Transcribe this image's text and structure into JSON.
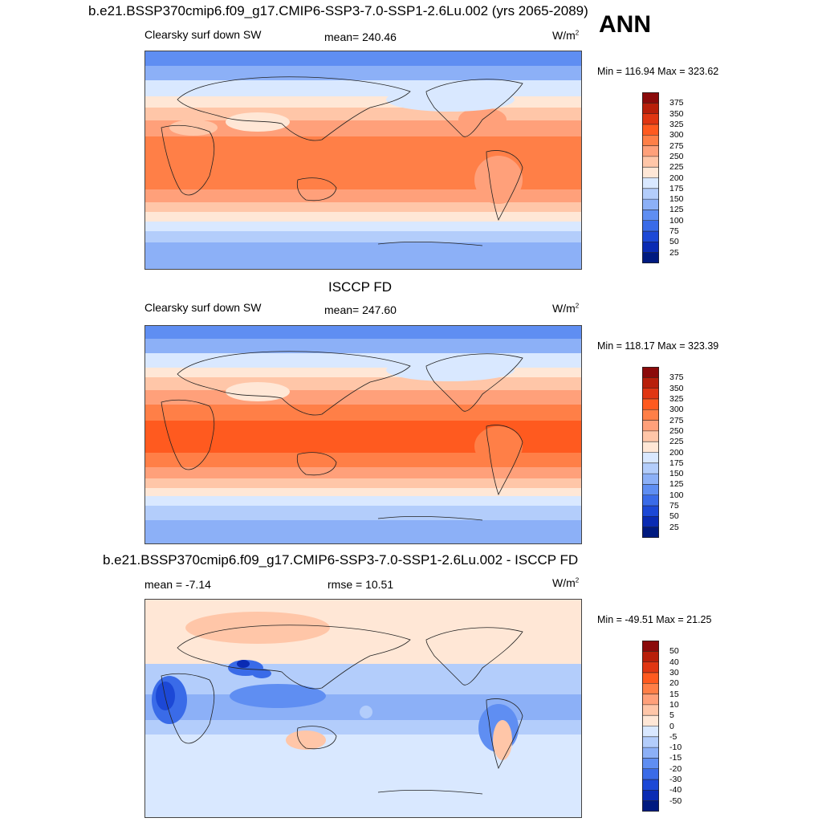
{
  "header": {
    "title": "b.e21.BSSP370cmip6.f09_g17.CMIP6-SSP3-7.0-SSP1-2.6Lu.002 (yrs 2065-2089)",
    "season": "ANN"
  },
  "panels": [
    {
      "variable": "Clearsky surf down SW",
      "stat": "mean= 240.46",
      "units_base": "W/m",
      "units_exp": "2",
      "minmax": "Min = 116.94 Max = 323.62",
      "colorbar_labels": [
        "375",
        "350",
        "325",
        "300",
        "275",
        "250",
        "225",
        "200",
        "175",
        "150",
        "125",
        "100",
        "75",
        "50",
        "25"
      ],
      "colorbar_colors": [
        "#8b0a0a",
        "#b81f0a",
        "#e03612",
        "#ff5a1f",
        "#ff7f47",
        "#ffa07a",
        "#ffc6a8",
        "#ffe7d6",
        "#d9e8ff",
        "#b3cdfb",
        "#8cb0f7",
        "#5f8ef2",
        "#3a6be8",
        "#1c48d6",
        "#0a2bb3",
        "#001a80"
      ],
      "field": "model-sw"
    },
    {
      "title": "ISCCP FD",
      "variable": "Clearsky surf down SW",
      "stat": "mean= 247.60",
      "units_base": "W/m",
      "units_exp": "2",
      "minmax": "Min = 118.17 Max = 323.39",
      "colorbar_labels": [
        "375",
        "350",
        "325",
        "300",
        "275",
        "250",
        "225",
        "200",
        "175",
        "150",
        "125",
        "100",
        "75",
        "50",
        "25"
      ],
      "colorbar_colors": [
        "#8b0a0a",
        "#b81f0a",
        "#e03612",
        "#ff5a1f",
        "#ff7f47",
        "#ffa07a",
        "#ffc6a8",
        "#ffe7d6",
        "#d9e8ff",
        "#b3cdfb",
        "#8cb0f7",
        "#5f8ef2",
        "#3a6be8",
        "#1c48d6",
        "#0a2bb3",
        "#001a80"
      ],
      "field": "obs-sw"
    },
    {
      "title": "b.e21.BSSP370cmip6.f09_g17.CMIP6-SSP3-7.0-SSP1-2.6Lu.002 - ISCCP FD",
      "stat": "mean =  -7.14",
      "stat2": "rmse =  10.51",
      "units_base": "W/m",
      "units_exp": "2",
      "minmax": "Min = -49.51 Max =  21.25",
      "colorbar_labels": [
        "50",
        "40",
        "30",
        "20",
        "15",
        "10",
        "5",
        "0",
        "-5",
        "-10",
        "-15",
        "-20",
        "-30",
        "-40",
        "-50"
      ],
      "colorbar_colors": [
        "#8b0a0a",
        "#b81f0a",
        "#e03612",
        "#ff5a1f",
        "#ff7f47",
        "#ffa07a",
        "#ffc6a8",
        "#ffe7d6",
        "#d9e8ff",
        "#b3cdfb",
        "#8cb0f7",
        "#5f8ef2",
        "#3a6be8",
        "#1c48d6",
        "#0a2bb3",
        "#001a80"
      ],
      "field": "difference"
    }
  ]
}
